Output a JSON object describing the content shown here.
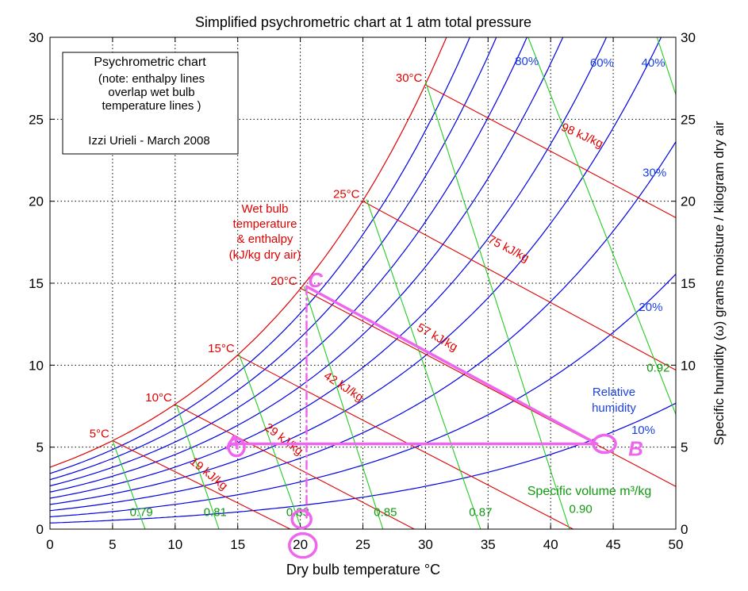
{
  "chart_data": {
    "type": "line",
    "title": "Simplified psychrometric chart at 1 atm total pressure",
    "xlabel": "Dry bulb temperature °C",
    "ylabel": "Specific humidity (ω) grams moisture / kilogram dry air",
    "xlim": [
      0,
      50
    ],
    "ylim": [
      0,
      30
    ],
    "x_ticks": [
      0,
      5,
      10,
      15,
      20,
      25,
      30,
      35,
      40,
      45,
      50
    ],
    "y_ticks": [
      0,
      5,
      10,
      15,
      20,
      25,
      30
    ],
    "grid": true,
    "info_box": {
      "line1": "Psychrometric chart",
      "line2": "(note: enthalpy lines",
      "line3": "overlap wet bulb",
      "line4": "temperature lines )",
      "line5": "Izzi Urieli - March 2008"
    },
    "relative_humidity_label": [
      "Relative",
      "humidity"
    ],
    "wet_bulb_label": [
      "Wet bulb",
      "temperature",
      "& enthalpy",
      "(kJ/kg dry air)"
    ],
    "specific_volume_label": "Specific volume m³/kg",
    "relative_humidity_curves": [
      {
        "label": "10%",
        "rh": 0.1
      },
      {
        "label": "20%",
        "rh": 0.2
      },
      {
        "label": "30%",
        "rh": 0.3
      },
      {
        "label": "40%",
        "rh": 0.4
      },
      {
        "label": "",
        "rh": 0.5
      },
      {
        "label": "60%",
        "rh": 0.6
      },
      {
        "label": "",
        "rh": 0.7
      },
      {
        "label": "80%",
        "rh": 0.8
      },
      {
        "label": "",
        "rh": 0.9
      },
      {
        "label": "",
        "rh": 1.0
      }
    ],
    "wet_bulb_lines": [
      {
        "t_label": "5°C",
        "h_label": "19 kJ/kg",
        "points": [
          [
            5,
            5.4
          ],
          [
            19.2,
            0
          ]
        ]
      },
      {
        "t_label": "10°C",
        "h_label": "29 kJ/kg",
        "points": [
          [
            10,
            7.6
          ],
          [
            29.1,
            0
          ]
        ]
      },
      {
        "t_label": "15°C",
        "h_label": "42 kJ/kg",
        "points": [
          [
            15,
            10.6
          ],
          [
            41.8,
            0
          ]
        ]
      },
      {
        "t_label": "20°C",
        "h_label": "57 kJ/kg",
        "points": [
          [
            20,
            14.7
          ],
          [
            50,
            2.6
          ]
        ]
      },
      {
        "t_label": "25°C",
        "h_label": "75 kJ/kg",
        "points": [
          [
            25,
            20.0
          ],
          [
            50,
            9.7
          ]
        ]
      },
      {
        "t_label": "30°C",
        "h_label": "98 kJ/kg",
        "points": [
          [
            30,
            27.1
          ],
          [
            50,
            19.0
          ]
        ]
      }
    ],
    "specific_volume_lines": [
      {
        "label": "0.79",
        "points": [
          [
            5,
            5.4
          ],
          [
            7.6,
            0
          ]
        ]
      },
      {
        "label": "0.81",
        "points": [
          [
            10.1,
            7.6
          ],
          [
            13.5,
            0
          ]
        ]
      },
      {
        "label": "0.83",
        "points": [
          [
            15.1,
            10.7
          ],
          [
            20.1,
            0
          ]
        ]
      },
      {
        "label": "0.85",
        "points": [
          [
            20.3,
            14.8
          ],
          [
            26.6,
            0
          ]
        ]
      },
      {
        "label": "0.87",
        "points": [
          [
            25.3,
            20.1
          ],
          [
            34.4,
            0
          ]
        ]
      },
      {
        "label": "0.90",
        "points": [
          [
            30.0,
            27.3
          ],
          [
            41.5,
            0
          ]
        ]
      },
      {
        "label": "0.92",
        "points": [
          [
            38.2,
            30
          ],
          [
            50,
            7.0
          ]
        ]
      },
      {
        "label": "",
        "points": [
          [
            48.5,
            30
          ],
          [
            50,
            26.5
          ]
        ]
      }
    ],
    "annotations": {
      "points": [
        {
          "label": "A",
          "x": 14.6,
          "y": 5.3
        },
        {
          "label": "B",
          "x": 46.8,
          "y": 4.9
        },
        {
          "label": "C",
          "x": 21.2,
          "y": 15.2
        }
      ],
      "lines": [
        {
          "style": "solid",
          "points": [
            [
              14.3,
              5.2
            ],
            [
              43.7,
              5.2
            ]
          ]
        },
        {
          "style": "solid",
          "points": [
            [
              20.5,
              14.8
            ],
            [
              43.7,
              5.2
            ]
          ]
        },
        {
          "style": "dashdot",
          "points": [
            [
              20.5,
              14.8
            ],
            [
              20.5,
              0.7
            ]
          ]
        }
      ],
      "circles": [
        {
          "x": 14.9,
          "y": 5.0
        },
        {
          "x": 44.3,
          "y": 5.2
        },
        {
          "x": 20.1,
          "y": 0.6
        },
        {
          "x": 20.2,
          "y": -1.0
        }
      ]
    },
    "colors": {
      "rh": "#0000e6",
      "rh_label": "#1a3fe6",
      "wet_bulb": "#e00000",
      "volume": "#22cc22",
      "volume_label": "#119911",
      "annotation": "#ee66ee",
      "axis": "#000000"
    }
  }
}
